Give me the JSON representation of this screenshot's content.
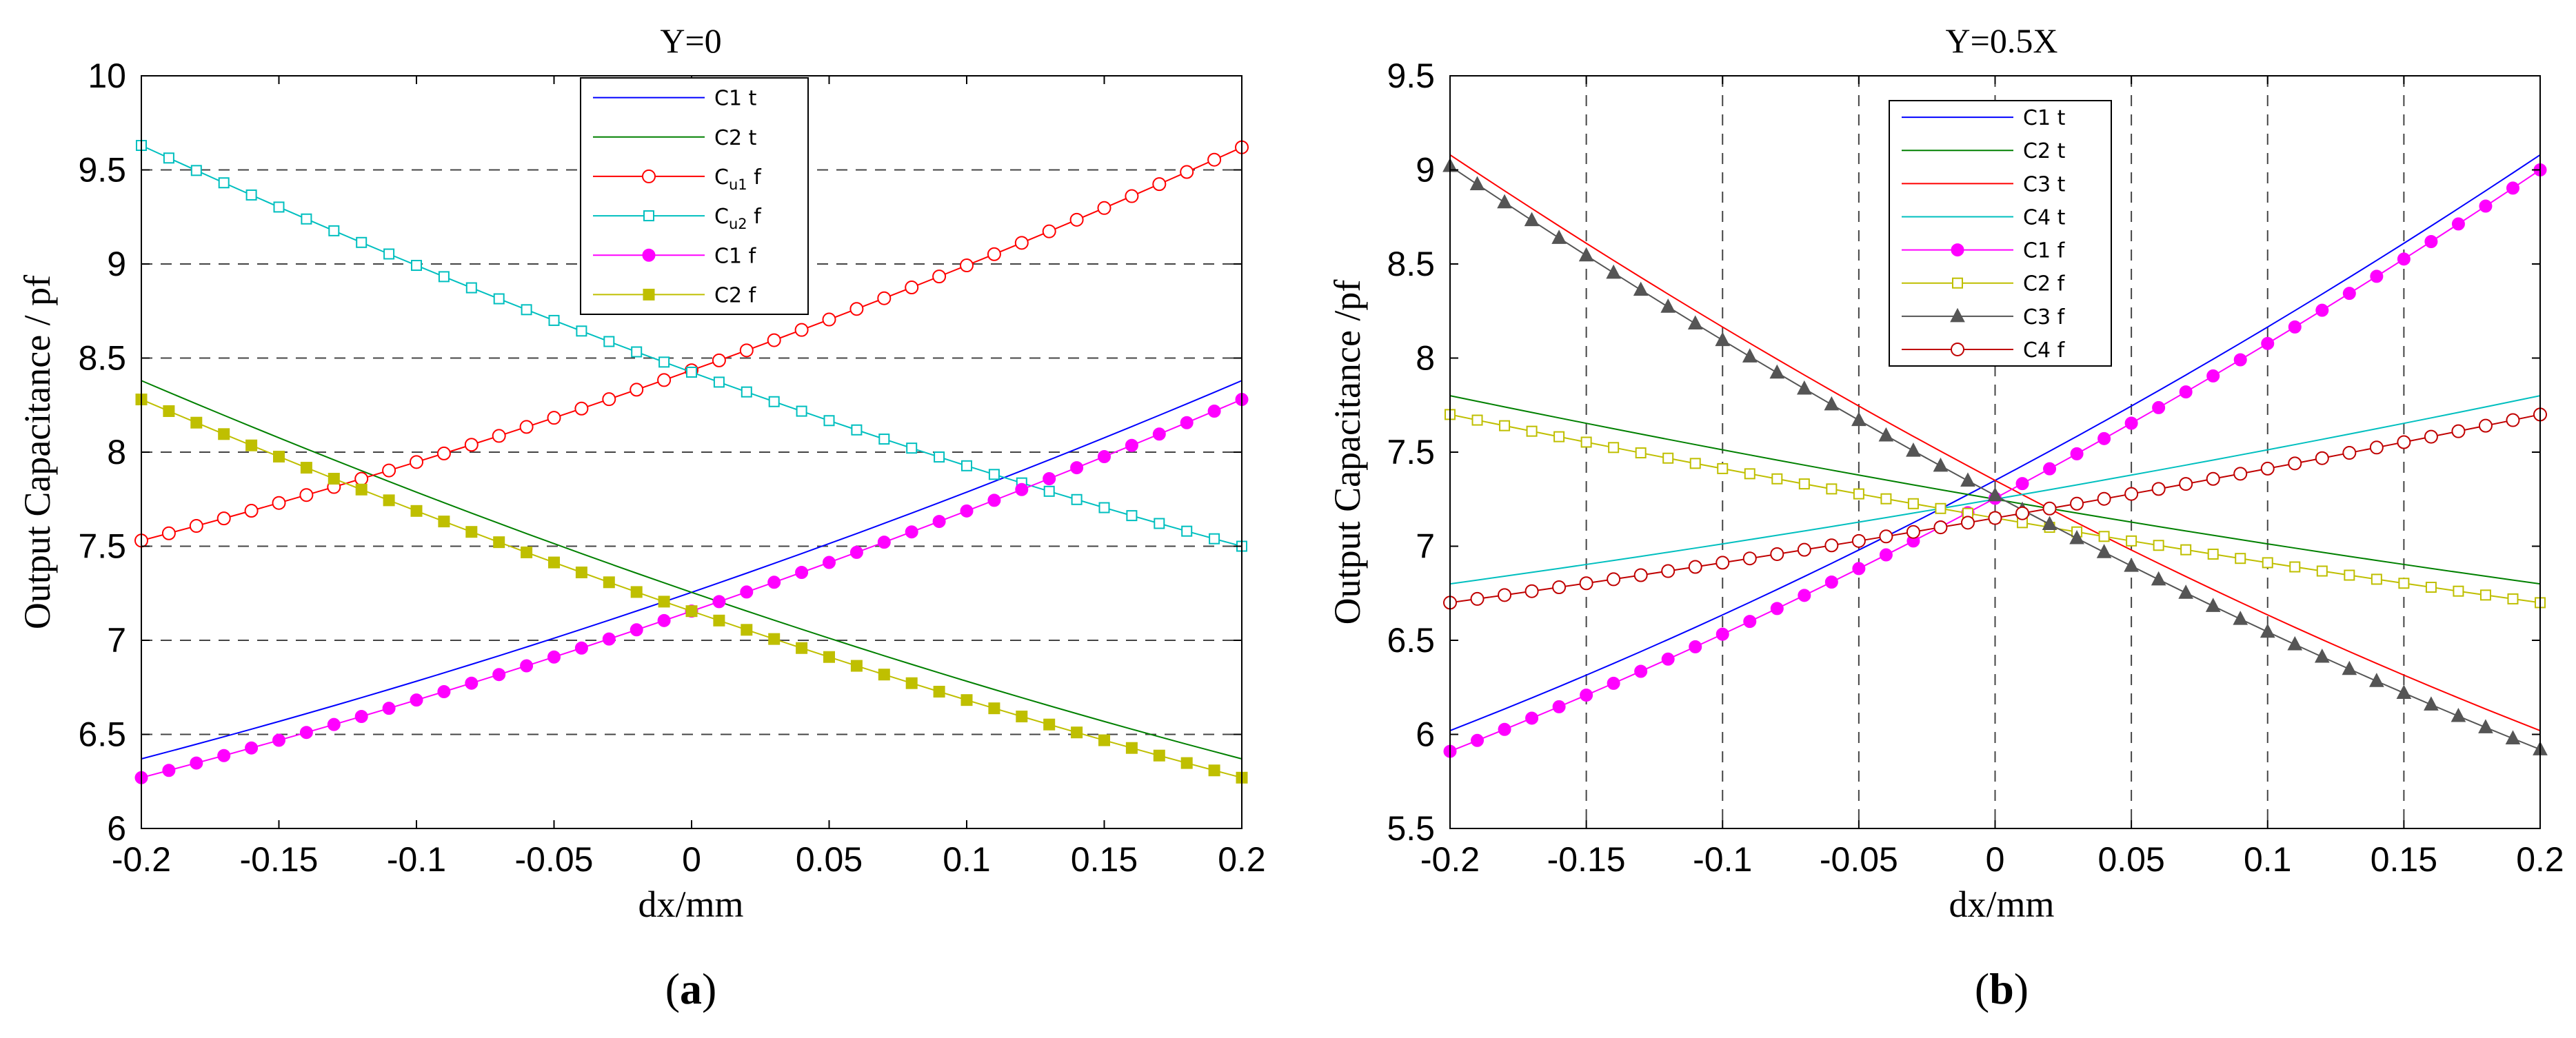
{
  "chart_data": [
    {
      "type": "line",
      "panel_label": "a",
      "title": "Y=0",
      "xlabel": "dx/mm",
      "ylabel": "Output Capacitance / pf",
      "xlim": [
        -0.2,
        0.2
      ],
      "ylim": [
        6,
        10
      ],
      "xticks": [
        -0.2,
        -0.15,
        -0.1,
        -0.05,
        0,
        0.05,
        0.1,
        0.15,
        0.2
      ],
      "xtick_labels": [
        "-0.2",
        "-0.15",
        "-0.1",
        "-0.05",
        "0",
        "0.05",
        "0.1",
        "0.15",
        "0.2"
      ],
      "yticks": [
        6,
        6.5,
        7,
        7.5,
        8,
        8.5,
        9,
        9.5,
        10
      ],
      "ytick_labels": [
        "6",
        "6.5",
        "7",
        "7.5",
        "8",
        "8.5",
        "9",
        "9.5",
        "10"
      ],
      "hgrid": [
        6.5,
        7,
        7.5,
        8,
        8.5,
        9,
        9.5
      ],
      "vgrid": [],
      "legend_position": "top-center",
      "series": [
        {
          "name": "C1 t",
          "color": "#0000ff",
          "marker": "none",
          "y_start": 6.37,
          "y_end": 8.38,
          "curve": 0.12
        },
        {
          "name": "C2 t",
          "color": "#008000",
          "marker": "none",
          "y_start": 8.38,
          "y_end": 6.37,
          "curve": 0.12
        },
        {
          "name": "Cu1 f",
          "label_main": "C",
          "label_sub": "u1",
          "label_suffix": " f",
          "color": "#ff0000",
          "marker": "open-circle",
          "y_start": 7.53,
          "y_end": 9.62,
          "curve": 0.14
        },
        {
          "name": "Cu2 f",
          "label_main": "C",
          "label_sub": "u2",
          "label_suffix": " f",
          "color": "#00bfbf",
          "marker": "open-square",
          "y_start": 9.63,
          "y_end": 7.5,
          "curve": 0.14
        },
        {
          "name": "C1 f",
          "color": "#ff00ff",
          "marker": "filled-circle",
          "y_start": 6.27,
          "y_end": 8.28,
          "curve": 0.12
        },
        {
          "name": "C2 f",
          "color": "#bfbf00",
          "marker": "filled-square",
          "y_start": 8.28,
          "y_end": 6.27,
          "curve": 0.12
        }
      ]
    },
    {
      "type": "line",
      "panel_label": "b",
      "title": "Y=0.5X",
      "xlabel": "dx/mm",
      "ylabel": "Output Capacitance /pf",
      "xlim": [
        -0.2,
        0.2
      ],
      "ylim": [
        5.5,
        9.5
      ],
      "xticks": [
        -0.2,
        -0.15,
        -0.1,
        -0.05,
        0,
        0.05,
        0.1,
        0.15,
        0.2
      ],
      "xtick_labels": [
        "-0.2",
        "-0.15",
        "-0.1",
        "-0.05",
        "0",
        "0.05",
        "0.1",
        "0.15",
        "0.2"
      ],
      "yticks": [
        5.5,
        6,
        6.5,
        7,
        7.5,
        8,
        8.5,
        9,
        9.5
      ],
      "ytick_labels": [
        "5.5",
        "6",
        "6.5",
        "7",
        "7.5",
        "8",
        "8.5",
        "9",
        "9.5"
      ],
      "hgrid": [],
      "vgrid": [
        -0.15,
        -0.1,
        -0.05,
        0,
        0.05,
        0.1,
        0.15
      ],
      "legend_position": "top-center",
      "series": [
        {
          "name": "C1 t",
          "color": "#0000ff",
          "marker": "none",
          "y_start": 6.02,
          "y_end": 9.08,
          "curve": 0.2
        },
        {
          "name": "C2 t",
          "color": "#008000",
          "marker": "none",
          "y_start": 7.8,
          "y_end": 6.8,
          "curve": 0.05
        },
        {
          "name": "C3 t",
          "color": "#ff0000",
          "marker": "none",
          "y_start": 9.08,
          "y_end": 6.02,
          "curve": 0.2
        },
        {
          "name": "C4 t",
          "color": "#00bfbf",
          "marker": "none",
          "y_start": 6.8,
          "y_end": 7.8,
          "curve": 0.05
        },
        {
          "name": "C1 f",
          "color": "#ff00ff",
          "marker": "filled-circle",
          "y_start": 5.91,
          "y_end": 9.0,
          "curve": 0.2
        },
        {
          "name": "C2 f",
          "color": "#bfbf00",
          "marker": "open-square",
          "y_start": 7.7,
          "y_end": 6.7,
          "curve": 0.05
        },
        {
          "name": "C3 f",
          "color": "#555555",
          "marker": "filled-triangle",
          "y_start": 9.02,
          "y_end": 5.92,
          "curve": 0.2
        },
        {
          "name": "C4 f",
          "color": "#c00000",
          "marker": "open-circle",
          "y_start": 6.7,
          "y_end": 7.7,
          "curve": 0.05
        }
      ]
    }
  ]
}
